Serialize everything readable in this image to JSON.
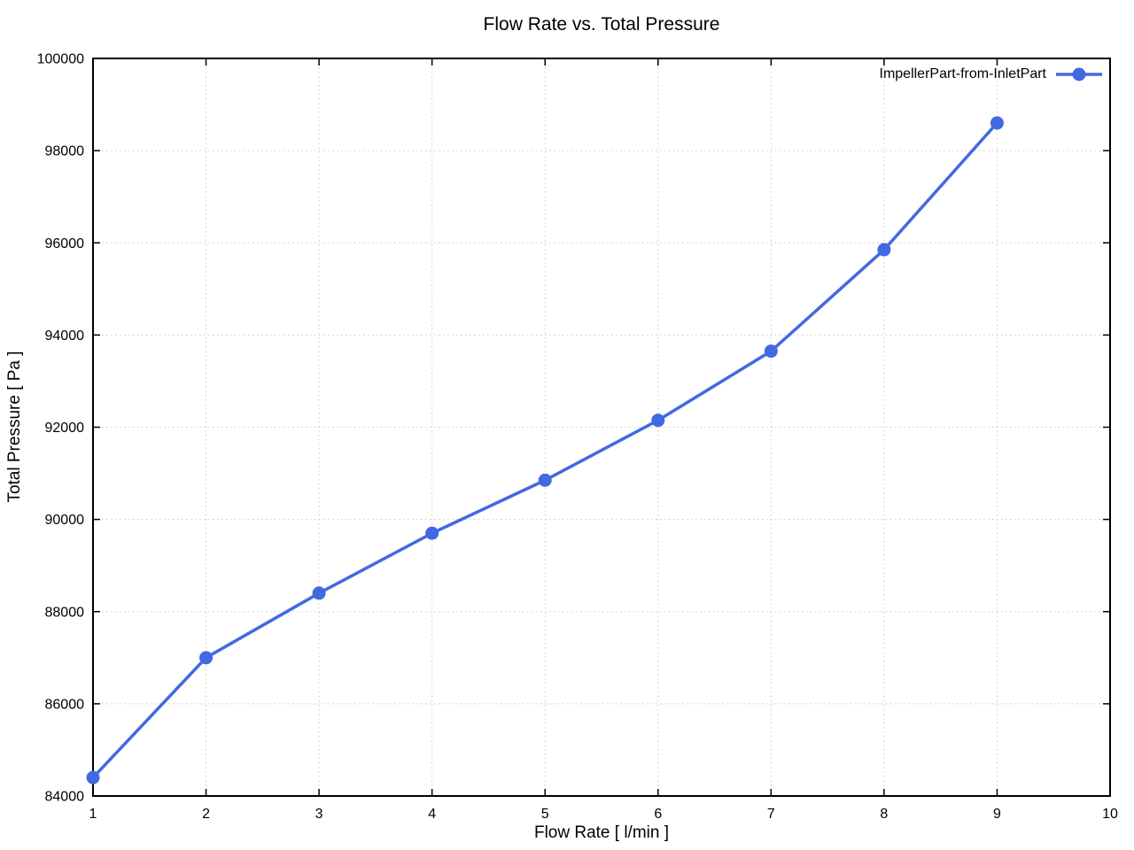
{
  "chart_data": {
    "type": "line",
    "title": "Flow Rate vs. Total Pressure",
    "xlabel": "Flow Rate [ l/min ]",
    "ylabel": "Total Pressure [ Pa ]",
    "xlim": [
      1,
      10
    ],
    "ylim": [
      84000,
      100000
    ],
    "x_ticks": [
      1,
      2,
      3,
      4,
      5,
      6,
      7,
      8,
      9,
      10
    ],
    "y_ticks": [
      84000,
      86000,
      88000,
      90000,
      92000,
      94000,
      96000,
      98000,
      100000
    ],
    "grid": "dotted",
    "legend_position": "top-right-inside",
    "series": [
      {
        "name": "ImpellerPart-from-InletPart",
        "color": "#4169e1",
        "marker": "circle",
        "x": [
          1,
          2,
          3,
          4,
          5,
          6,
          7,
          8,
          9
        ],
        "y": [
          84400,
          87000,
          88400,
          89700,
          90850,
          92150,
          93650,
          95850,
          98600
        ]
      }
    ],
    "colors": {
      "grid": "#c8c8c8",
      "axis": "#000000",
      "text": "#000000",
      "background": "#ffffff"
    }
  }
}
